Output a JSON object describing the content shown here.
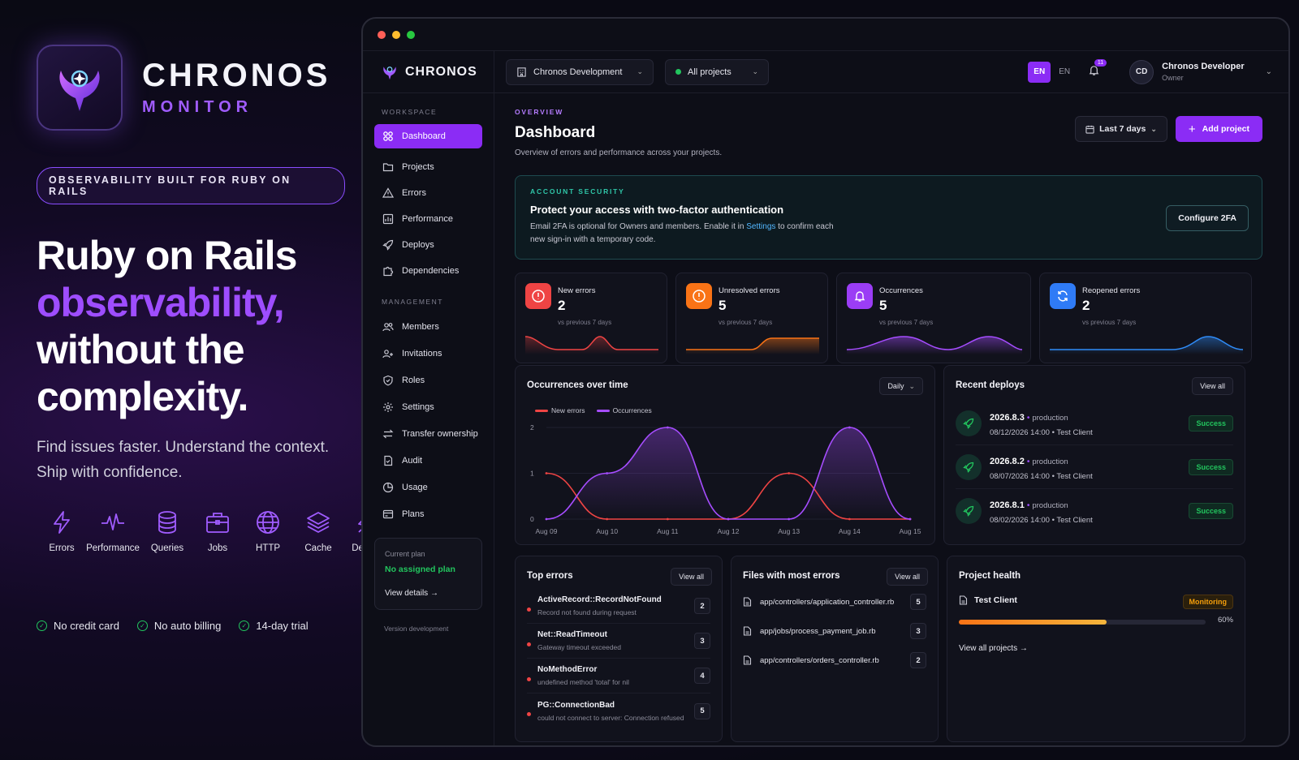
{
  "hero": {
    "brand_title": "CHRONOS",
    "brand_sub": "MONITOR",
    "tagline": "OBSERVABILITY BUILT FOR RUBY ON RAILS",
    "headline_1": "Ruby on Rails",
    "headline_accent": "observability,",
    "headline_2": "without the",
    "headline_3": "complexity.",
    "subhead_1": "Find issues faster. Understand the context.",
    "subhead_2": "Ship with confidence.",
    "features": [
      {
        "label": "Errors",
        "icon": "bolt-icon"
      },
      {
        "label": "Performance",
        "icon": "pulse-icon"
      },
      {
        "label": "Queries",
        "icon": "database-icon"
      },
      {
        "label": "Jobs",
        "icon": "briefcase-icon"
      },
      {
        "label": "HTTP",
        "icon": "globe-icon"
      },
      {
        "label": "Cache",
        "icon": "layers-icon"
      },
      {
        "label": "Deploys",
        "icon": "rocket-icon"
      }
    ],
    "checks": [
      "No credit card",
      "No auto billing",
      "14-day trial"
    ],
    "accent_color": "#9e4dff"
  },
  "app": {
    "logo_text": "CHRONOS",
    "org_select": "Chronos Development",
    "project_select": "All projects",
    "lang_active": "EN",
    "lang_other": "EN",
    "notif_count": "11",
    "user_initials": "CD",
    "user_name": "Chronos Developer",
    "user_role": "Owner",
    "brand_color": "#8b2cf5"
  },
  "sidebar": {
    "workspace_label": "WORKSPACE",
    "workspace_items": [
      {
        "label": "Dashboard",
        "icon": "grid-icon",
        "active": true
      },
      {
        "label": "Projects",
        "icon": "folder-icon"
      },
      {
        "label": "Errors",
        "icon": "warning-icon"
      },
      {
        "label": "Performance",
        "icon": "chart-icon"
      },
      {
        "label": "Deploys",
        "icon": "rocket-icon"
      },
      {
        "label": "Dependencies",
        "icon": "puzzle-icon"
      }
    ],
    "management_label": "MANAGEMENT",
    "management_items": [
      {
        "label": "Members",
        "icon": "users-icon"
      },
      {
        "label": "Invitations",
        "icon": "user-plus-icon"
      },
      {
        "label": "Roles",
        "icon": "shield-icon"
      },
      {
        "label": "Settings",
        "icon": "gear-icon"
      },
      {
        "label": "Transfer ownership",
        "icon": "transfer-icon"
      },
      {
        "label": "Audit",
        "icon": "audit-icon"
      },
      {
        "label": "Usage",
        "icon": "pie-icon"
      },
      {
        "label": "Plans",
        "icon": "card-icon"
      }
    ],
    "plan_label": "Current plan",
    "plan_value": "No assigned plan",
    "plan_link": "View details →",
    "version": "Version development"
  },
  "header": {
    "overline": "OVERVIEW",
    "title": "Dashboard",
    "description": "Overview of errors and performance across your projects.",
    "range": "Last 7 days",
    "add_project": "Add project"
  },
  "security": {
    "overline": "ACCOUNT SECURITY",
    "title": "Protect your access with two-factor authentication",
    "text_1": "Email 2FA is optional for Owners and members. Enable it in ",
    "link": "Settings",
    "text_2": " to confirm each new sign-in with a temporary code.",
    "button": "Configure 2FA"
  },
  "stats": [
    {
      "label": "New errors",
      "value": "2",
      "sub": "vs previous 7 days",
      "color": "#ef4444",
      "icon": "alert-circle-icon"
    },
    {
      "label": "Unresolved errors",
      "value": "5",
      "sub": "vs previous 7 days",
      "color": "#f97316",
      "icon": "alert-circle-icon"
    },
    {
      "label": "Occurrences",
      "value": "5",
      "sub": "vs previous 7 days",
      "color": "#9b3df5",
      "icon": "bell-icon"
    },
    {
      "label": "Reopened errors",
      "value": "2",
      "sub": "vs previous 7 days",
      "color": "#2f7bf6",
      "icon": "refresh-icon"
    }
  ],
  "occurrences": {
    "title": "Occurrences over time",
    "granularity": "Daily"
  },
  "chart_data": {
    "type": "line",
    "title": "Occurrences over time",
    "categories": [
      "Aug 09",
      "Aug 10",
      "Aug 11",
      "Aug 12",
      "Aug 13",
      "Aug 14",
      "Aug 15"
    ],
    "series": [
      {
        "name": "New errors",
        "values": [
          1,
          0,
          0,
          0,
          1,
          0,
          0
        ],
        "color": "#ef4444"
      },
      {
        "name": "Occurrences",
        "values": [
          0,
          1,
          2,
          0,
          0,
          2,
          0
        ],
        "color": "#a64dff"
      }
    ],
    "ylim": [
      0,
      2
    ],
    "yticks": [
      "0",
      "1",
      "2"
    ],
    "grid": true,
    "legend": "top-left"
  },
  "deploys": {
    "title": "Recent deploys",
    "view_all": "View all",
    "items": [
      {
        "version": "2026.8.3",
        "env": "production",
        "meta": "08/12/2026 14:00 • Test Client",
        "status": "Success"
      },
      {
        "version": "2026.8.2",
        "env": "production",
        "meta": "08/07/2026 14:00 • Test Client",
        "status": "Success"
      },
      {
        "version": "2026.8.1",
        "env": "production",
        "meta": "08/02/2026 14:00 • Test Client",
        "status": "Success"
      }
    ]
  },
  "top_errors": {
    "title": "Top errors",
    "view_all": "View all",
    "items": [
      {
        "name": "ActiveRecord::RecordNotFound",
        "desc": "Record not found during request",
        "count": "2"
      },
      {
        "name": "Net::ReadTimeout",
        "desc": "Gateway timeout exceeded",
        "count": "3"
      },
      {
        "name": "NoMethodError",
        "desc": "undefined method 'total' for nil",
        "count": "4"
      },
      {
        "name": "PG::ConnectionBad",
        "desc": "could not connect to server: Connection refused",
        "count": "5"
      }
    ]
  },
  "files": {
    "title": "Files with most errors",
    "view_all": "View all",
    "items": [
      {
        "path": "app/controllers/application_controller.rb",
        "count": "5"
      },
      {
        "path": "app/jobs/process_payment_job.rb",
        "count": "3"
      },
      {
        "path": "app/controllers/orders_controller.rb",
        "count": "2"
      }
    ]
  },
  "health": {
    "title": "Project health",
    "project": "Test Client",
    "status": "Monitoring",
    "progress": 0.6,
    "progress_label": "60%",
    "view_all": "View all projects →"
  }
}
